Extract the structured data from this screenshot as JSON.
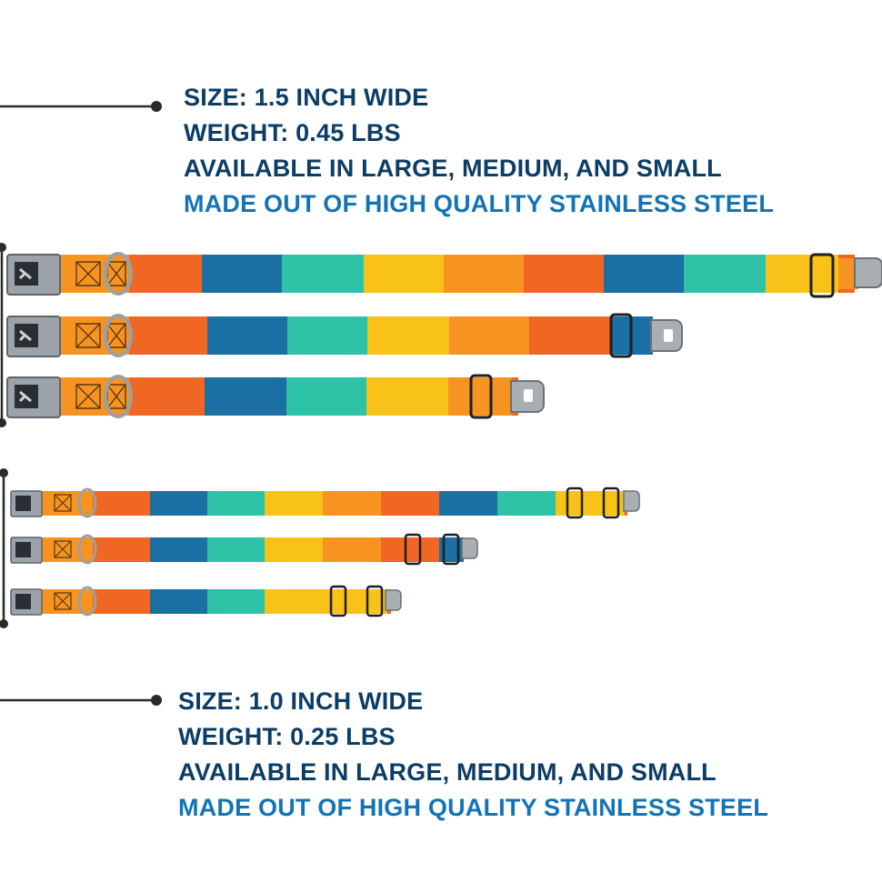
{
  "colors": {
    "heading": "#0c3d66",
    "accent": "#1274b6",
    "stripes": [
      "#f06623",
      "#1a6fa3",
      "#2ec3a6",
      "#f9c218",
      "#f79321"
    ]
  },
  "spec_large": {
    "size": "SIZE: 1.5 INCH WIDE",
    "weight": "WEIGHT: 0.45 LBS",
    "availability": "AVAILABLE IN LARGE, MEDIUM, AND SMALL",
    "material": "MADE OUT OF HIGH QUALITY STAINLESS STEEL"
  },
  "spec_small": {
    "size": "SIZE: 1.0 INCH WIDE",
    "weight": "WEIGHT: 0.25 LBS",
    "availability": "AVAILABLE IN LARGE, MEDIUM, AND SMALL",
    "material": "MADE OUT OF HIGH QUALITY STAINLESS STEEL"
  },
  "collars": [
    {
      "group": "1.5-inch",
      "size": "large"
    },
    {
      "group": "1.5-inch",
      "size": "medium"
    },
    {
      "group": "1.5-inch",
      "size": "small"
    },
    {
      "group": "1.0-inch",
      "size": "large"
    },
    {
      "group": "1.0-inch",
      "size": "medium"
    },
    {
      "group": "1.0-inch",
      "size": "small"
    }
  ]
}
